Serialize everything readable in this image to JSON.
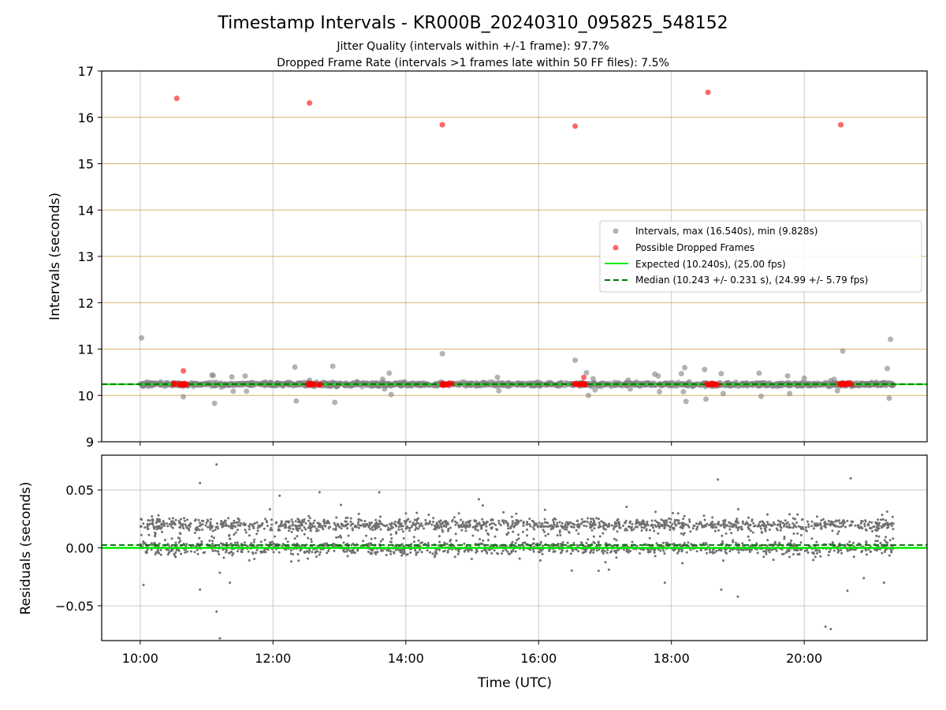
{
  "title": "Timestamp Intervals - KR000B_20240310_095825_548152",
  "subtitle_lines": [
    "Jitter Quality (intervals within +/-1 frame): 97.7%",
    "Dropped Frame Rate (intervals >1 frames late within 50 FF files): 7.5%"
  ],
  "chart_data": [
    {
      "type": "scatter",
      "title": "Timestamp Intervals - KR000B_20240310_095825_548152",
      "ylabel": "Intervals (seconds)",
      "xlabel": "",
      "x_unit": "hours (UTC)",
      "xlim": [
        9.42,
        21.85
      ],
      "ylim": [
        9,
        17
      ],
      "yticks": [
        9,
        10,
        11,
        12,
        13,
        14,
        15,
        16,
        17
      ],
      "xticks": [
        10,
        12,
        14,
        16,
        18,
        20
      ],
      "xtick_labels": [
        "10:00",
        "12:00",
        "14:00",
        "16:00",
        "18:00",
        "20:00"
      ],
      "grid": true,
      "y_gridline_color": "#d9b36b",
      "legend_position": "center-right",
      "legend": [
        "Intervals, max (16.540s), min (9.828s)",
        "Possible Dropped Frames",
        "Expected (10.240s), (25.00 fps)",
        "Median (10.243 +/- 0.231 s), (24.99 +/- 5.79 fps)"
      ],
      "series": [
        {
          "name": "Intervals, max (16.540s), min (9.828s)",
          "color": "#808080",
          "band": {
            "x_start": 10.0,
            "x_end": 21.35,
            "y_center": 10.24
          },
          "outliers": [
            [
              10.02,
              11.24
            ],
            [
              10.65,
              9.97
            ],
            [
              11.08,
              10.44
            ],
            [
              11.1,
              10.43
            ],
            [
              11.12,
              9.83
            ],
            [
              11.22,
              10.18
            ],
            [
              11.38,
              10.4
            ],
            [
              11.4,
              10.09
            ],
            [
              11.58,
              10.42
            ],
            [
              11.6,
              10.09
            ],
            [
              12.33,
              10.61
            ],
            [
              12.35,
              9.88
            ],
            [
              12.55,
              10.33
            ],
            [
              12.9,
              10.63
            ],
            [
              12.93,
              9.85
            ],
            [
              13.65,
              10.35
            ],
            [
              13.68,
              10.14
            ],
            [
              13.75,
              10.48
            ],
            [
              13.78,
              10.02
            ],
            [
              14.55,
              10.9
            ],
            [
              15.38,
              10.39
            ],
            [
              15.4,
              10.1
            ],
            [
              16.55,
              10.76
            ],
            [
              16.72,
              10.49
            ],
            [
              16.75,
              10.0
            ],
            [
              16.82,
              10.36
            ],
            [
              16.85,
              10.12
            ],
            [
              17.35,
              10.33
            ],
            [
              17.38,
              10.14
            ],
            [
              17.75,
              10.46
            ],
            [
              17.8,
              10.42
            ],
            [
              17.82,
              10.08
            ],
            [
              18.15,
              10.47
            ],
            [
              18.18,
              10.08
            ],
            [
              18.2,
              10.6
            ],
            [
              18.22,
              9.87
            ],
            [
              18.5,
              10.56
            ],
            [
              18.52,
              9.92
            ],
            [
              18.75,
              10.47
            ],
            [
              18.78,
              10.04
            ],
            [
              19.32,
              10.48
            ],
            [
              19.35,
              9.98
            ],
            [
              19.75,
              10.42
            ],
            [
              19.78,
              10.04
            ],
            [
              20.0,
              10.37
            ],
            [
              20.4,
              10.32
            ],
            [
              20.45,
              10.35
            ],
            [
              20.58,
              10.96
            ],
            [
              20.5,
              10.1
            ],
            [
              21.25,
              10.58
            ],
            [
              21.28,
              9.94
            ],
            [
              21.3,
              11.21
            ]
          ]
        },
        {
          "name": "Possible Dropped Frames",
          "color": "#ff0000",
          "points": [
            [
              10.55,
              16.41
            ],
            [
              12.55,
              16.31
            ],
            [
              14.55,
              15.84
            ],
            [
              16.55,
              15.81
            ],
            [
              18.55,
              16.54
            ],
            [
              20.55,
              15.84
            ],
            [
              10.65,
              10.53
            ],
            [
              16.68,
              10.39
            ]
          ],
          "clusters": [
            [
              10.6,
              10.24
            ],
            [
              12.62,
              10.24
            ],
            [
              14.62,
              10.24
            ],
            [
              16.62,
              10.24
            ],
            [
              18.62,
              10.24
            ],
            [
              20.62,
              10.24
            ]
          ]
        },
        {
          "name": "Expected (10.240s), (25.00 fps)",
          "color": "#00ee00",
          "hline": 10.24,
          "style": "solid"
        },
        {
          "name": "Median (10.243 +/- 0.231 s), (24.99 +/- 5.79 fps)",
          "color": "#007700",
          "hline": 10.243,
          "style": "dashed"
        }
      ]
    },
    {
      "type": "scatter",
      "ylabel": "Residuals (seconds)",
      "xlabel": "Time (UTC)",
      "xlim": [
        9.42,
        21.85
      ],
      "ylim": [
        -0.08,
        0.08
      ],
      "yticks": [
        -0.05,
        0.0,
        0.05
      ],
      "ytick_labels": [
        "−0.05",
        "0.00",
        "0.05"
      ],
      "xticks": [
        10,
        12,
        14,
        16,
        18,
        20
      ],
      "xtick_labels": [
        "10:00",
        "12:00",
        "14:00",
        "16:00",
        "18:00",
        "20:00"
      ],
      "grid": true,
      "series": [
        {
          "name": "Residuals",
          "color": "#707070",
          "bands": [
            0.02,
            0.0
          ],
          "x_start": 10.0,
          "x_end": 21.35,
          "outliers": [
            [
              11.15,
              0.072
            ],
            [
              11.15,
              -0.055
            ],
            [
              11.2,
              -0.078
            ],
            [
              10.9,
              0.056
            ],
            [
              12.7,
              0.048
            ],
            [
              12.1,
              0.045
            ],
            [
              13.6,
              0.048
            ],
            [
              15.1,
              0.042
            ],
            [
              18.7,
              0.059
            ],
            [
              20.7,
              0.06
            ],
            [
              20.32,
              -0.068
            ],
            [
              20.4,
              -0.07
            ],
            [
              19.0,
              -0.042
            ],
            [
              18.75,
              -0.036
            ],
            [
              20.65,
              -0.037
            ],
            [
              21.2,
              -0.03
            ],
            [
              10.05,
              -0.032
            ],
            [
              10.9,
              -0.036
            ],
            [
              11.35,
              -0.03
            ],
            [
              17.9,
              -0.03
            ]
          ]
        },
        {
          "name": "Expected",
          "color": "#00ee00",
          "hline": 0.0,
          "style": "solid"
        },
        {
          "name": "Median",
          "color": "#007700",
          "hline": 0.0025,
          "style": "dashed"
        }
      ]
    }
  ]
}
